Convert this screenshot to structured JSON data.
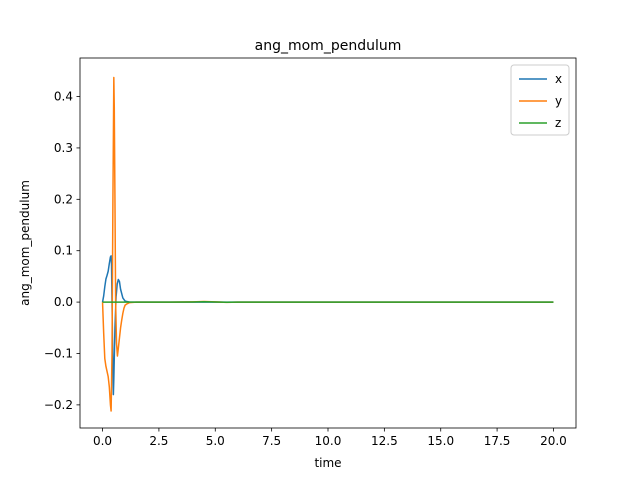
{
  "chart_data": {
    "type": "line",
    "title": "ang_mom_pendulum",
    "xlabel": "time",
    "ylabel": "ang_mom_pendulum",
    "xlim": [
      -1.0,
      21.0
    ],
    "ylim": [
      -0.245,
      0.475
    ],
    "xticks": [
      0.0,
      2.5,
      5.0,
      7.5,
      10.0,
      12.5,
      15.0,
      17.5,
      20.0
    ],
    "xtick_labels": [
      "0.0",
      "2.5",
      "5.0",
      "7.5",
      "10.0",
      "12.5",
      "15.0",
      "17.5",
      "20.0"
    ],
    "yticks": [
      -0.2,
      -0.1,
      0.0,
      0.1,
      0.2,
      0.3,
      0.4
    ],
    "ytick_labels": [
      "−0.2",
      "−0.1",
      "0.0",
      "0.1",
      "0.2",
      "0.3",
      "0.4"
    ],
    "grid": false,
    "legend_position": "top-right",
    "series": [
      {
        "name": "x",
        "color": "#1f77b4",
        "x": [
          0.0,
          0.05,
          0.1,
          0.15,
          0.2,
          0.25,
          0.3,
          0.35,
          0.38,
          0.4,
          0.42,
          0.45,
          0.48,
          0.5,
          0.55,
          0.6,
          0.65,
          0.7,
          0.75,
          0.8,
          0.9,
          1.0,
          1.2,
          1.5,
          2.0,
          3.0,
          5.0,
          10.0,
          15.0,
          20.0
        ],
        "y": [
          0.0,
          0.012,
          0.03,
          0.045,
          0.052,
          0.06,
          0.075,
          0.088,
          0.09,
          0.07,
          0.0,
          -0.1,
          -0.18,
          -0.15,
          -0.05,
          0.01,
          0.035,
          0.044,
          0.04,
          0.025,
          0.008,
          0.002,
          0.0,
          0.0,
          0.0,
          0.0,
          0.0,
          0.0,
          0.0,
          0.0
        ]
      },
      {
        "name": "y",
        "color": "#ff7f0e",
        "x": [
          0.0,
          0.05,
          0.1,
          0.15,
          0.2,
          0.25,
          0.3,
          0.35,
          0.38,
          0.42,
          0.46,
          0.5,
          0.52,
          0.55,
          0.58,
          0.62,
          0.66,
          0.7,
          0.75,
          0.8,
          0.85,
          0.9,
          0.95,
          1.0,
          1.1,
          1.2,
          1.5,
          2.0,
          3.0,
          4.0,
          4.5,
          5.0,
          5.5,
          6.0,
          7.0,
          10.0,
          15.0,
          20.0
        ],
        "y": [
          0.0,
          -0.06,
          -0.11,
          -0.125,
          -0.135,
          -0.145,
          -0.165,
          -0.2,
          -0.212,
          -0.1,
          0.2,
          0.437,
          0.38,
          0.2,
          0.0,
          -0.08,
          -0.105,
          -0.09,
          -0.07,
          -0.05,
          -0.035,
          -0.022,
          -0.012,
          -0.006,
          -0.003,
          -0.001,
          0.0,
          0.0,
          0.0,
          0.0005,
          0.0012,
          0.0005,
          -0.0005,
          0.0,
          0.0,
          0.0,
          0.0,
          0.0
        ]
      },
      {
        "name": "z",
        "color": "#2ca02c",
        "x": [
          0.0,
          1.0,
          2.0,
          3.0,
          4.0,
          4.5,
          5.0,
          5.5,
          6.0,
          7.0,
          10.0,
          15.0,
          20.0
        ],
        "y": [
          0.0,
          0.0,
          0.0,
          0.0,
          0.0003,
          0.0008,
          0.0003,
          -0.0003,
          0.0,
          0.0,
          0.0,
          0.0,
          0.0
        ]
      }
    ]
  }
}
